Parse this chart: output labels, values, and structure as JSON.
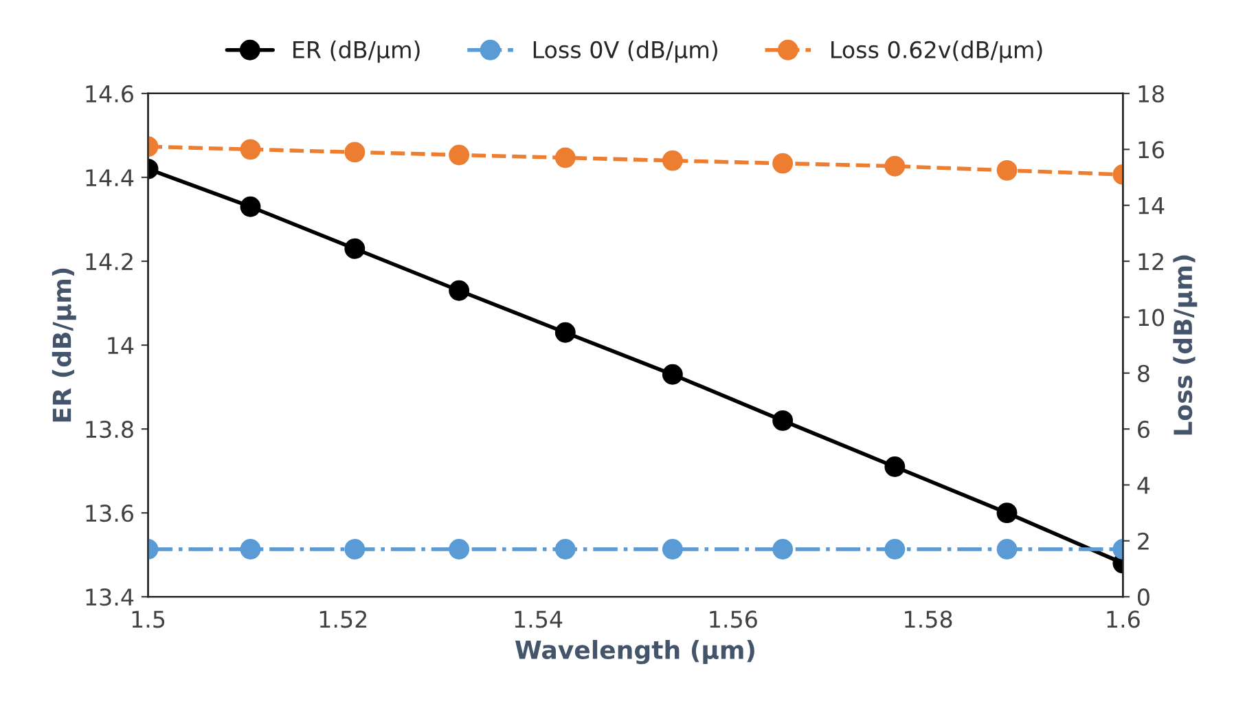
{
  "chart_data": {
    "type": "line",
    "xlabel": "Wavelength (µm)",
    "ylabel": "ER (dB/µm)",
    "y2label": "Loss (dB/µm)",
    "x": [
      1.5,
      1.5105,
      1.5212,
      1.5319,
      1.5428,
      1.5538,
      1.5651,
      1.5766,
      1.5881,
      1.6
    ],
    "series": [
      {
        "name": "ER (dB/µm)",
        "color": "#000000",
        "line_style": "solid",
        "values": [
          14.42,
          14.33,
          14.23,
          14.13,
          14.03,
          13.93,
          13.82,
          13.71,
          13.6,
          13.48
        ]
      },
      {
        "name": "Loss 0V (dB/µm)",
        "color": "#5b9bd5",
        "line_style": "dashdot",
        "axis": "y2",
        "values": [
          1.7,
          1.7,
          1.7,
          1.7,
          1.7,
          1.7,
          1.7,
          1.7,
          1.7,
          1.7
        ]
      },
      {
        "name": "Loss 0.62v(dB/µm)",
        "color": "#ed7d31",
        "line_style": "dashed",
        "axis": "y2",
        "values": [
          16.1,
          16.0,
          15.9,
          15.8,
          15.7,
          15.6,
          15.5,
          15.4,
          15.25,
          15.1
        ]
      }
    ],
    "xlim": [
      1.5,
      1.6
    ],
    "xticks": [
      1.5,
      1.52,
      1.54,
      1.56,
      1.58,
      1.6
    ],
    "ylim": [
      13.4,
      14.6
    ],
    "yticks": [
      13.4,
      13.6,
      13.8,
      14,
      14.2,
      14.4,
      14.6
    ],
    "y2lim": [
      0,
      18
    ],
    "y2ticks": [
      0,
      2,
      4,
      6,
      8,
      10,
      12,
      14,
      16,
      18
    ],
    "marker": "circle",
    "grid": false,
    "legend": "top"
  }
}
